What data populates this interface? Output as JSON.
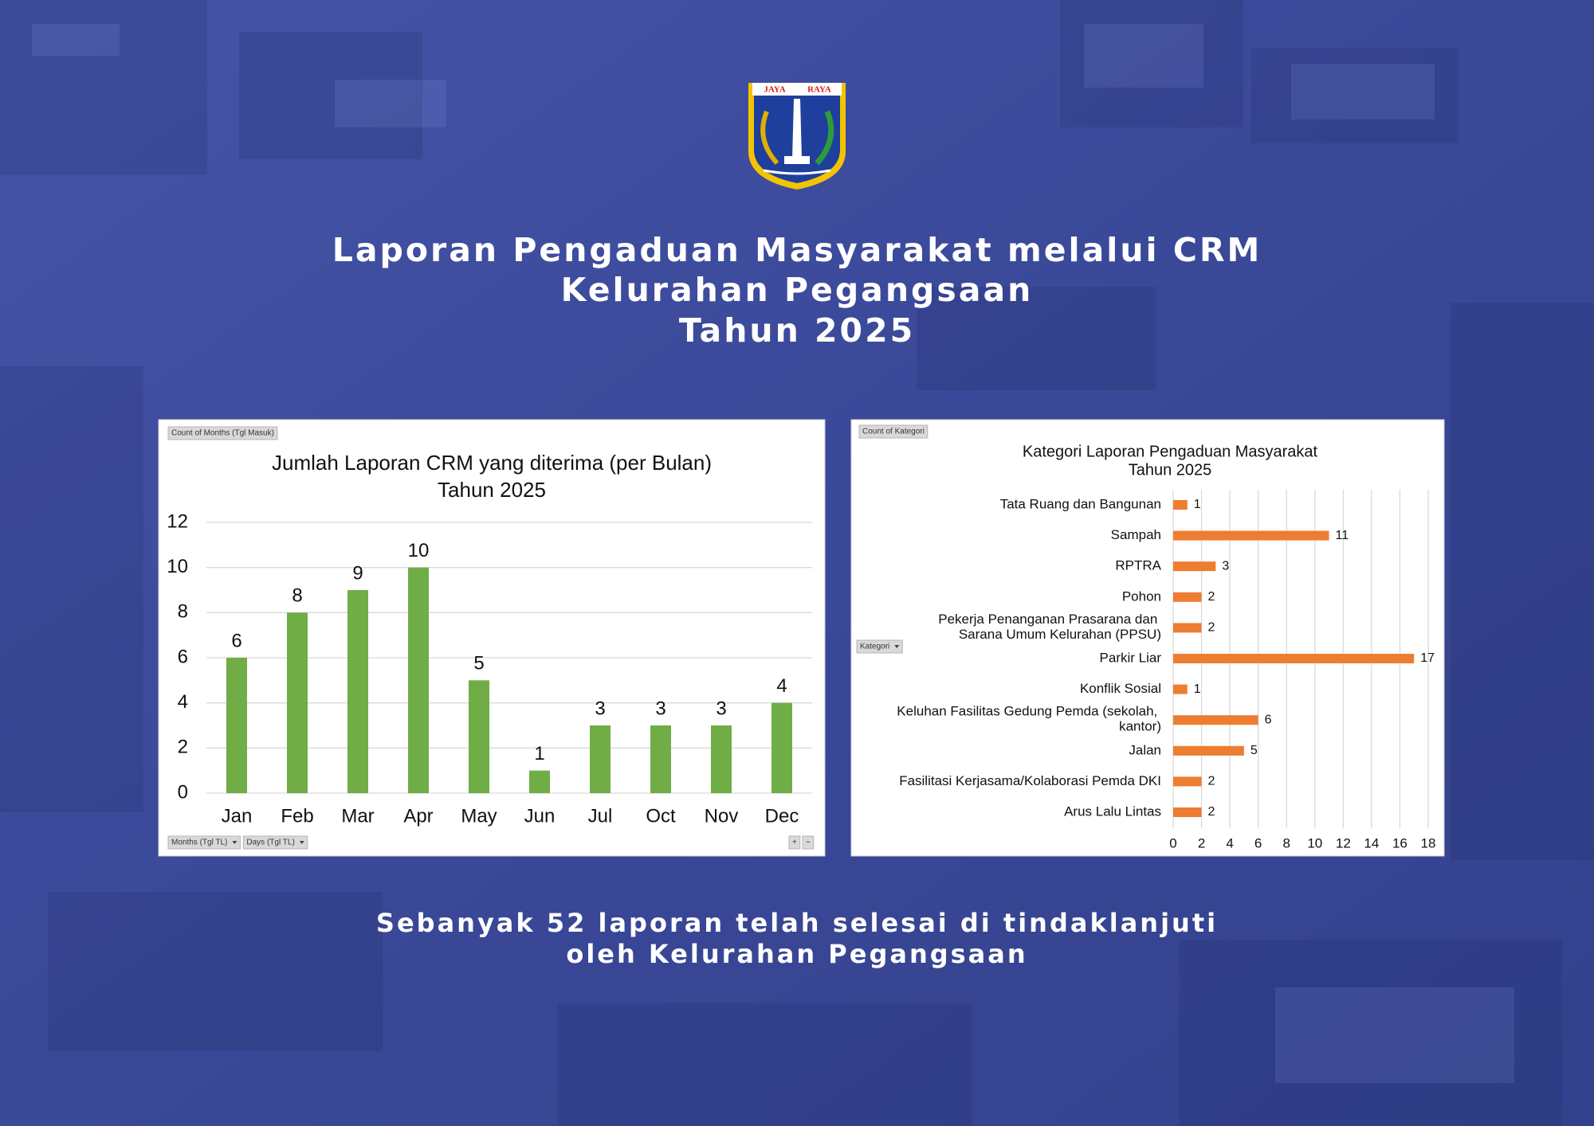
{
  "header": {
    "logo_left": "JAYA",
    "logo_right": "RAYA",
    "title_lines": [
      "Laporan Pengaduan Masyarakat melalui CRM",
      "Kelurahan Pegangsaan",
      "Tahun 2025"
    ]
  },
  "chart_data": [
    {
      "type": "bar",
      "orientation": "vertical",
      "title": "Jumlah Laporan CRM yang diterima (per Bulan)",
      "subtitle": "Tahun 2025",
      "buttons": [
        "Count of Months (Tgl Masuk)",
        "Months (Tgl TL)",
        "Days (Tgl TL)",
        "+",
        "−"
      ],
      "categories": [
        "Jan",
        "Feb",
        "Mar",
        "Apr",
        "May",
        "Jun",
        "Jul",
        "Oct",
        "Nov",
        "Dec"
      ],
      "values": [
        6,
        8,
        9,
        10,
        5,
        1,
        3,
        3,
        3,
        4
      ],
      "color": "#70ad47",
      "ylim": [
        0,
        12
      ],
      "yticks": [
        0,
        2,
        4,
        6,
        8,
        10,
        12
      ],
      "grid": true
    },
    {
      "type": "bar",
      "orientation": "horizontal",
      "title": "Kategori Laporan Pengaduan Masyarakat",
      "subtitle": "Tahun 2025",
      "buttons": [
        "Count of Kategori",
        "Kategori"
      ],
      "categories": [
        "Tata Ruang dan Bangunan",
        "Sampah",
        "RPTRA",
        "Pohon",
        "Pekerja Penanganan Prasarana dan Sarana Umum Kelurahan (PPSU)",
        "Parkir Liar",
        "Konflik Sosial",
        "Keluhan Fasilitas Gedung Pemda (sekolah, kantor)",
        "Jalan",
        "Fasilitasi Kerjasama/Kolaborasi Pemda DKI",
        "Arus Lalu Lintas"
      ],
      "values": [
        1,
        11,
        3,
        2,
        2,
        17,
        1,
        6,
        5,
        2,
        2
      ],
      "color": "#ed7d31",
      "xlim": [
        0,
        18
      ],
      "xticks": [
        0,
        2,
        4,
        6,
        8,
        10,
        12,
        14,
        16,
        18
      ],
      "grid": true
    }
  ],
  "footer": {
    "lines": [
      "Sebanyak 52 laporan telah selesai di tindaklanjuti",
      "oleh Kelurahan Pegangsaan"
    ]
  }
}
